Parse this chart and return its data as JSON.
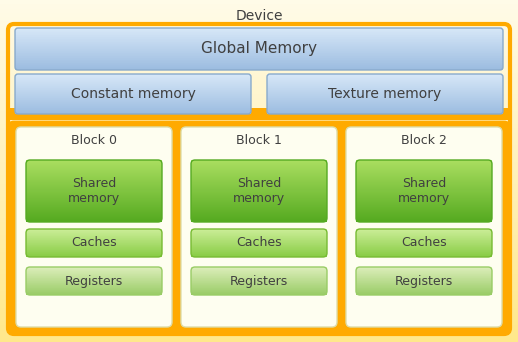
{
  "title": "Device",
  "bg_color_top": "#FFFBE8",
  "bg_color_bot": "#FFE88A",
  "global_memory_label": "Global Memory",
  "gm_color_top": "#D8E8F8",
  "gm_color_bot": "#9BBCE0",
  "ct_color_top": "#D8E8F8",
  "ct_color_bot": "#9BBCE0",
  "const_label": "Constant memory",
  "texture_label": "Texture memory",
  "orange_color": "#FFAA00",
  "block_inner_color": "#FEFEF0",
  "block_labels": [
    "Block 0",
    "Block 1",
    "Block 2"
  ],
  "inner_labels": [
    [
      "Shared\nmemory",
      "Caches",
      "Registers"
    ],
    [
      "Shared\nmemory",
      "Caches",
      "Registers"
    ],
    [
      "Shared\nmemory",
      "Caches",
      "Registers"
    ]
  ],
  "shared_mem_color_top": "#AADE60",
  "shared_mem_color_bot": "#55AA20",
  "cache_color_top": "#CCEE99",
  "cache_color_bot": "#88CC44",
  "reg_color_top": "#DDEEBB",
  "reg_color_bot": "#99CC66",
  "text_color": "#404040",
  "title_fontsize": 10,
  "gm_fontsize": 11,
  "label_fontsize": 10,
  "block_label_fontsize": 9,
  "inner_fontsize": 9
}
